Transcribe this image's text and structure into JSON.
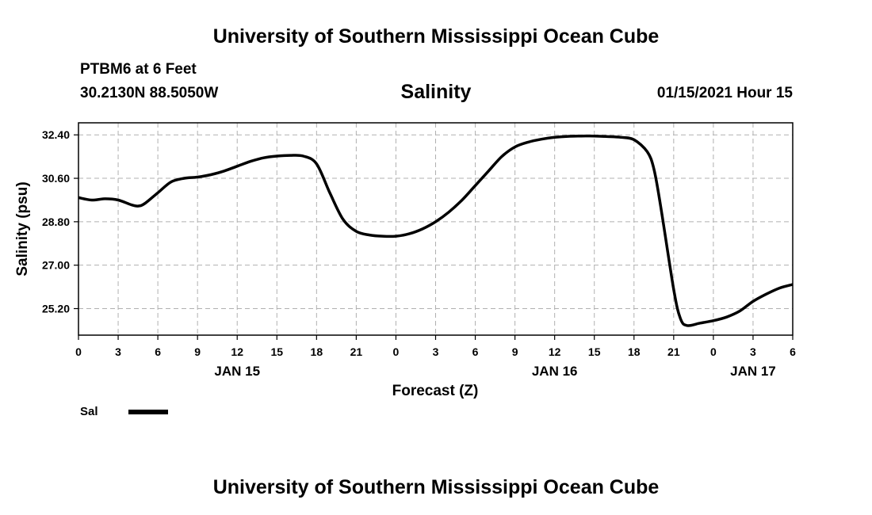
{
  "header": {
    "title_top": "University of Southern Mississippi Ocean Cube",
    "station": "PTBM6 at 6 Feet",
    "coords": "30.2130N 88.5050W",
    "variable": "Salinity",
    "timestamp": "01/15/2021 Hour 15"
  },
  "footer": {
    "title_bottom": "University of Southern Mississippi Ocean Cube"
  },
  "legend": {
    "label": "Sal",
    "line_color": "#000000"
  },
  "chart_data": {
    "type": "line",
    "title": "Salinity",
    "xlabel": "Forecast (Z)",
    "ylabel": "Salinity (psu)",
    "x_unit": "hours from 00Z JAN 15",
    "xlim": [
      0,
      54
    ],
    "ylim": [
      24.1,
      32.9
    ],
    "grid": true,
    "y_ticks": [
      25.2,
      27.0,
      28.8,
      30.6,
      32.4
    ],
    "y_tick_labels": [
      "25.20",
      "27.00",
      "28.80",
      "30.60",
      "32.40"
    ],
    "x_ticks": [
      0,
      3,
      6,
      9,
      12,
      15,
      18,
      21,
      24,
      27,
      30,
      33,
      36,
      39,
      42,
      45,
      48,
      51,
      54
    ],
    "x_tick_labels": [
      "0",
      "3",
      "6",
      "9",
      "12",
      "15",
      "18",
      "21",
      "0",
      "3",
      "6",
      "9",
      "12",
      "15",
      "18",
      "21",
      "0",
      "3",
      "6"
    ],
    "date_labels": [
      {
        "x": 12,
        "label": "JAN 15"
      },
      {
        "x": 36,
        "label": "JAN 16"
      },
      {
        "x": 51,
        "label": "JAN 17"
      }
    ],
    "series": [
      {
        "name": "Sal",
        "color": "#000000",
        "x": [
          0,
          1,
          2,
          3,
          4,
          4.5,
          5,
          6,
          7,
          8,
          9,
          10,
          11,
          12,
          13,
          14,
          15,
          16,
          17,
          18,
          19,
          20,
          21,
          22,
          23,
          24,
          25,
          26,
          27,
          28,
          29,
          30,
          31,
          32,
          33,
          34,
          35,
          36,
          37,
          38,
          39,
          40,
          41,
          42,
          43,
          43.5,
          44,
          45,
          45.5,
          46,
          47,
          48,
          49,
          50,
          51,
          52,
          53,
          54
        ],
        "y": [
          29.8,
          29.7,
          29.75,
          29.7,
          29.5,
          29.45,
          29.55,
          30.0,
          30.45,
          30.6,
          30.65,
          30.75,
          30.9,
          31.1,
          31.3,
          31.45,
          31.52,
          31.55,
          31.52,
          31.2,
          30.0,
          28.9,
          28.4,
          28.25,
          28.2,
          28.2,
          28.3,
          28.5,
          28.8,
          29.2,
          29.7,
          30.3,
          30.9,
          31.5,
          31.9,
          32.1,
          32.22,
          32.3,
          32.34,
          32.35,
          32.35,
          32.33,
          32.3,
          32.2,
          31.7,
          31.0,
          29.5,
          26.0,
          24.8,
          24.5,
          24.6,
          24.7,
          24.85,
          25.1,
          25.5,
          25.8,
          26.05,
          26.2
        ]
      }
    ]
  }
}
